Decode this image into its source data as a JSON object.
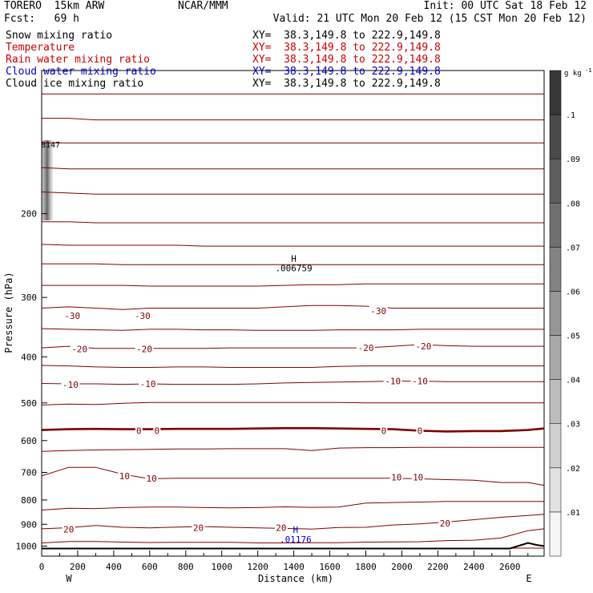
{
  "header": {
    "model": "TORERO  15km ARW",
    "org": "NCAR/MMM",
    "init": "Init: 00 UTC Sat 18 Feb 12",
    "fcst": "Fcst:   69 h",
    "valid": "Valid: 21 UTC Mon 20 Feb 12 (15 CST Mon 20 Feb 12)"
  },
  "fields": [
    {
      "name": "Snow mixing ratio",
      "xy": "XY=  38.3,149.8 to 222.9,149.8",
      "color": "#000000"
    },
    {
      "name": "Temperature",
      "xy": "XY=  38.3,149.8 to 222.9,149.8",
      "color": "#cc0000"
    },
    {
      "name": "Rain water mixing ratio",
      "xy": "XY=  38.3,149.8 to 222.9,149.8",
      "color": "#cc0000"
    },
    {
      "name": "Cloud water mixing ratio",
      "xy": "XY=  38.3,149.8 to 222.9,149.8",
      "color": "#0000cc"
    },
    {
      "name": "Cloud ice mixing ratio",
      "xy": "XY=  38.3,149.8 to 222.9,149.8",
      "color": "#000000"
    }
  ],
  "chart_data": {
    "type": "contour",
    "xlabel": "Distance (km)",
    "ylabel": "Pressure (hPa)",
    "xlim": [
      0,
      2790
    ],
    "ylim": [
      1050,
      100
    ],
    "y_scale": "log",
    "x_ticks": [
      0,
      200,
      400,
      600,
      800,
      1000,
      1200,
      1400,
      1600,
      1800,
      2000,
      2200,
      2400,
      2600
    ],
    "y_ticks": [
      200,
      300,
      400,
      500,
      600,
      700,
      800,
      900,
      1000
    ],
    "left_end_label": "W",
    "right_end_label": "E",
    "colorbar": {
      "unit": "g kg",
      "unit_exp": "-1",
      "ticks": [
        ".01",
        ".02",
        ".03",
        ".04",
        ".05",
        ".06",
        ".07",
        ".08",
        ".09",
        ".1"
      ]
    },
    "temperature_labels": [
      {
        "x": 170,
        "p": 328,
        "text": "-30"
      },
      {
        "x": 560,
        "p": 328,
        "text": "-30"
      },
      {
        "x": 1870,
        "p": 320,
        "text": "-30"
      },
      {
        "x": 210,
        "p": 385,
        "text": "-20"
      },
      {
        "x": 570,
        "p": 385,
        "text": "-20"
      },
      {
        "x": 1800,
        "p": 383,
        "text": "-20"
      },
      {
        "x": 2120,
        "p": 380,
        "text": "-20"
      },
      {
        "x": 160,
        "p": 458,
        "text": "-10"
      },
      {
        "x": 590,
        "p": 456,
        "text": "-10"
      },
      {
        "x": 1950,
        "p": 450,
        "text": "-10"
      },
      {
        "x": 2100,
        "p": 450,
        "text": "-10"
      },
      {
        "x": 540,
        "p": 572,
        "text": "0"
      },
      {
        "x": 640,
        "p": 572,
        "text": "0"
      },
      {
        "x": 1900,
        "p": 572,
        "text": "0"
      },
      {
        "x": 2100,
        "p": 572,
        "text": "0"
      },
      {
        "x": 460,
        "p": 712,
        "text": "10"
      },
      {
        "x": 610,
        "p": 720,
        "text": "10"
      },
      {
        "x": 1970,
        "p": 716,
        "text": "10"
      },
      {
        "x": 2090,
        "p": 716,
        "text": "10"
      },
      {
        "x": 150,
        "p": 922,
        "text": "20"
      },
      {
        "x": 870,
        "p": 915,
        "text": "20"
      },
      {
        "x": 1330,
        "p": 915,
        "text": "20"
      },
      {
        "x": 2240,
        "p": 895,
        "text": "20"
      }
    ],
    "extrema": [
      {
        "marker": "H",
        "value": ".006759",
        "x": 1400,
        "p": 258,
        "color": "#000000"
      },
      {
        "marker": "H",
        "value": ".01176",
        "x": 1410,
        "p": 960,
        "color": "#0000cc"
      }
    ],
    "edge_value": "8147"
  }
}
